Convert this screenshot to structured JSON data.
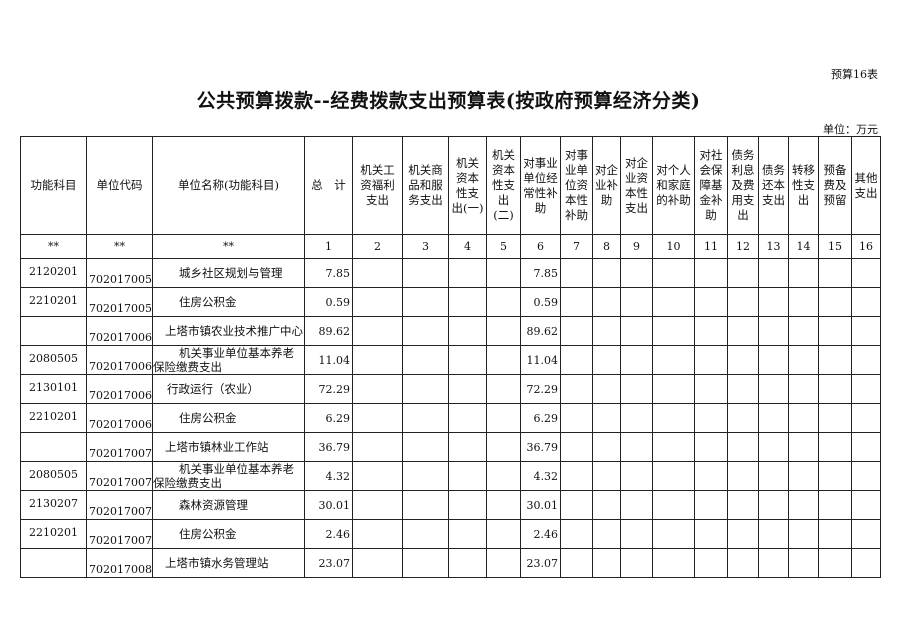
{
  "form_number": "预算16表",
  "title": "公共预算拨款--经费拨款支出预算表(按政府预算经济分类)",
  "unit_label": "单位：万元",
  "headers": [
    "功能科目",
    "单位代码",
    "单位名称(功能科目)",
    "总　计",
    "机关工资福利支出",
    "机关商品和服务支出",
    "机关资本性支出(一)",
    "机关资本性支出(二)",
    "对事业单位经常性补助",
    "对事业单位资本性补助",
    "对企业补助",
    "对企业资本性支出",
    "对个人和家庭的补助",
    "对社会保障基金补助",
    "债务利息及费用支出",
    "债务还本支出",
    "转移性支出",
    "预备费及预留",
    "其他支出"
  ],
  "index_row": [
    "**",
    "**",
    "**",
    "1",
    "2",
    "3",
    "4",
    "5",
    "6",
    "7",
    "8",
    "9",
    "10",
    "11",
    "12",
    "13",
    "14",
    "15",
    "16"
  ],
  "rows": [
    {
      "func_code": "2120201",
      "unit_code": "702017005",
      "name": "城乡社区规划与管理",
      "type": "fn",
      "total": "7.85",
      "col6": "7.85"
    },
    {
      "func_code": "2210201",
      "unit_code": "702017005",
      "name": "住房公积金",
      "type": "fn",
      "total": "0.59",
      "col6": "0.59"
    },
    {
      "func_code": "",
      "unit_code": "702017006",
      "name": "上塔市镇农业技术推广中心",
      "type": "un",
      "total": "89.62",
      "col6": "89.62"
    },
    {
      "func_code": "2080505",
      "unit_code": "702017006",
      "name": "机关事业单位基本养老保险缴费支出",
      "type": "fn",
      "total": "11.04",
      "col6": "11.04"
    },
    {
      "func_code": "2130101",
      "unit_code": "702017006",
      "name": "行政运行（农业）",
      "type": "fn2",
      "total": "72.29",
      "col6": "72.29"
    },
    {
      "func_code": "2210201",
      "unit_code": "702017006",
      "name": "住房公积金",
      "type": "fn",
      "total": "6.29",
      "col6": "6.29"
    },
    {
      "func_code": "",
      "unit_code": "702017007",
      "name": "上塔市镇林业工作站",
      "type": "un",
      "total": "36.79",
      "col6": "36.79"
    },
    {
      "func_code": "2080505",
      "unit_code": "702017007",
      "name": "机关事业单位基本养老保险缴费支出",
      "type": "fn",
      "total": "4.32",
      "col6": "4.32"
    },
    {
      "func_code": "2130207",
      "unit_code": "702017007",
      "name": "森林资源管理",
      "type": "fn",
      "total": "30.01",
      "col6": "30.01"
    },
    {
      "func_code": "2210201",
      "unit_code": "702017007",
      "name": "住房公积金",
      "type": "fn",
      "total": "2.46",
      "col6": "2.46"
    },
    {
      "func_code": "",
      "unit_code": "702017008",
      "name": "上塔市镇水务管理站",
      "type": "un",
      "total": "23.07",
      "col6": "23.07"
    }
  ]
}
